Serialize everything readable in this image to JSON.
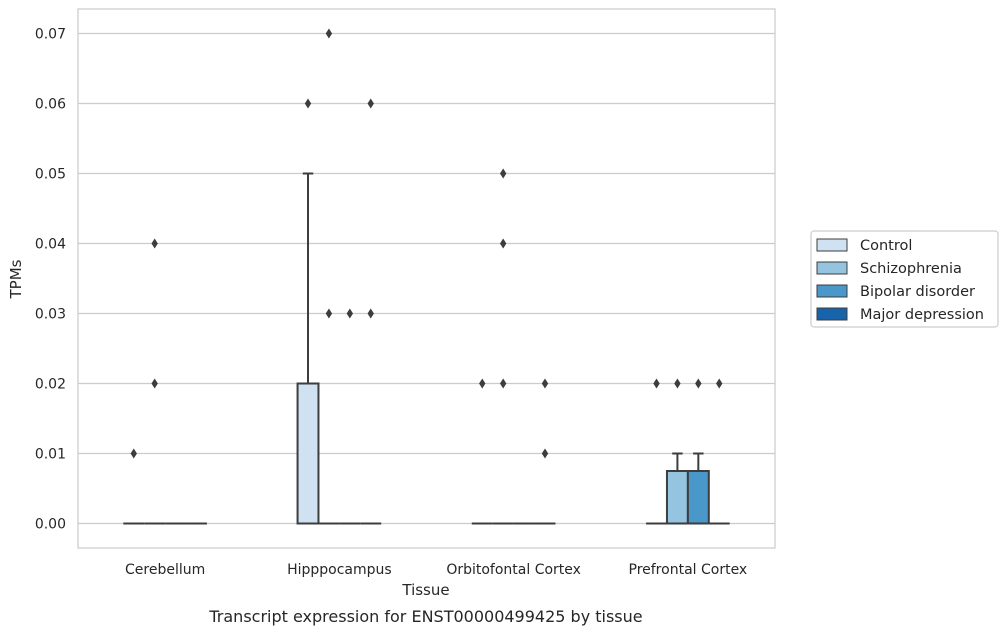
{
  "chart_data": {
    "type": "box",
    "title": "",
    "caption": "Transcript expression for ENST00000499425 by tissue",
    "xlabel": "Tissue",
    "ylabel": "TPMs",
    "ylim": [
      -0.0035,
      0.0735
    ],
    "yticks": [
      "0.00",
      "0.01",
      "0.02",
      "0.03",
      "0.04",
      "0.05",
      "0.06",
      "0.07"
    ],
    "ytick_values": [
      0,
      0.01,
      0.02,
      0.03,
      0.04,
      0.05,
      0.06,
      0.07
    ],
    "grid": "horizontal",
    "legend_position": "right",
    "categories": [
      "Cerebellum",
      "Hipppocampus",
      "Orbitofontal Cortex",
      "Prefrontal Cortex"
    ],
    "series": [
      {
        "name": "Control",
        "color": "#d0e1f2",
        "boxes": [
          {
            "q1": 0,
            "median": 0,
            "q3": 0,
            "whislo": 0,
            "whishi": 0,
            "fliers": [
              0.01
            ]
          },
          {
            "q1": 0,
            "median": 0,
            "q3": 0.02,
            "whislo": 0,
            "whishi": 0.05,
            "fliers": [
              0.06
            ]
          },
          {
            "q1": 0,
            "median": 0,
            "q3": 0,
            "whislo": 0,
            "whishi": 0,
            "fliers": [
              0.02
            ]
          },
          {
            "q1": 0,
            "median": 0,
            "q3": 0,
            "whislo": 0,
            "whishi": 0,
            "fliers": [
              0.02
            ]
          }
        ]
      },
      {
        "name": "Schizophrenia",
        "color": "#94c4df",
        "boxes": [
          {
            "q1": 0,
            "median": 0,
            "q3": 0,
            "whislo": 0,
            "whishi": 0,
            "fliers": [
              0.02,
              0.04
            ]
          },
          {
            "q1": 0,
            "median": 0,
            "q3": 0,
            "whislo": 0,
            "whishi": 0,
            "fliers": [
              0.03,
              0.07
            ]
          },
          {
            "q1": 0,
            "median": 0,
            "q3": 0,
            "whislo": 0,
            "whishi": 0,
            "fliers": [
              0.02,
              0.04,
              0.05
            ]
          },
          {
            "q1": 0,
            "median": 0,
            "q3": 0.0075,
            "whislo": 0,
            "whishi": 0.01,
            "fliers": [
              0.02
            ]
          }
        ]
      },
      {
        "name": "Bipolar disorder",
        "color": "#4a98c9",
        "boxes": [
          {
            "q1": 0,
            "median": 0,
            "q3": 0,
            "whislo": 0,
            "whishi": 0,
            "fliers": []
          },
          {
            "q1": 0,
            "median": 0,
            "q3": 0,
            "whislo": 0,
            "whishi": 0,
            "fliers": [
              0.03
            ]
          },
          {
            "q1": 0,
            "median": 0,
            "q3": 0,
            "whislo": 0,
            "whishi": 0,
            "fliers": []
          },
          {
            "q1": 0,
            "median": 0,
            "q3": 0.0075,
            "whislo": 0,
            "whishi": 0.01,
            "fliers": [
              0.02
            ]
          }
        ]
      },
      {
        "name": "Major depression",
        "color": "#1764ab",
        "boxes": [
          {
            "q1": 0,
            "median": 0,
            "q3": 0,
            "whislo": 0,
            "whishi": 0,
            "fliers": []
          },
          {
            "q1": 0,
            "median": 0,
            "q3": 0,
            "whislo": 0,
            "whishi": 0,
            "fliers": [
              0.03,
              0.06
            ]
          },
          {
            "q1": 0,
            "median": 0,
            "q3": 0,
            "whislo": 0,
            "whishi": 0,
            "fliers": [
              0.01,
              0.02
            ]
          },
          {
            "q1": 0,
            "median": 0,
            "q3": 0,
            "whislo": 0,
            "whishi": 0,
            "fliers": [
              0.02
            ]
          }
        ]
      }
    ]
  }
}
